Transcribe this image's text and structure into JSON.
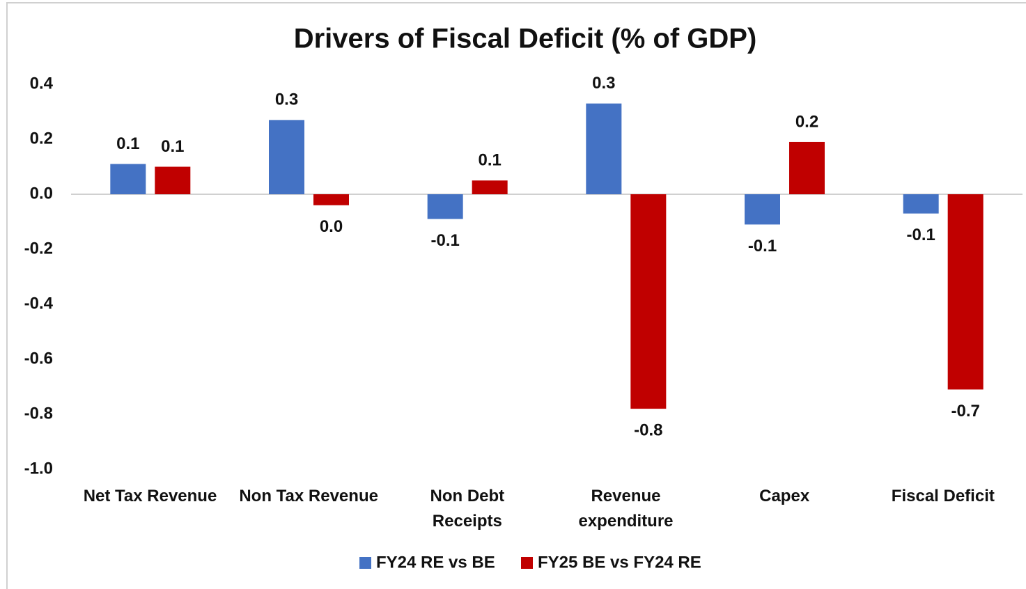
{
  "chart_data": {
    "type": "bar",
    "title": "Drivers of Fiscal Deficit (% of GDP)",
    "categories": [
      "Net Tax Revenue",
      "Non Tax Revenue",
      "Non Debt\nReceipts",
      "Revenue\nexpenditure",
      "Capex",
      "Fiscal Deficit"
    ],
    "series": [
      {
        "name": "FY24 RE vs BE",
        "color": "#4472c4",
        "values": [
          0.11,
          0.27,
          -0.09,
          0.33,
          -0.11,
          -0.07
        ],
        "value_labels": [
          "0.1",
          "0.3",
          "-0.1",
          "0.3",
          "-0.1",
          "-0.1"
        ]
      },
      {
        "name": "FY25 BE vs FY24 RE",
        "color": "#c00000",
        "values": [
          0.1,
          -0.04,
          0.05,
          -0.78,
          0.19,
          -0.71
        ],
        "value_labels": [
          "0.1",
          "0.0",
          "0.1",
          "-0.8",
          "0.2",
          "-0.7"
        ]
      }
    ],
    "ylim": [
      -1,
      0.4
    ],
    "yticks": [
      0.4,
      0.2,
      {
        "value": 0,
        "label": "0.0"
      },
      -0.2,
      -0.4,
      -0.6,
      -0.8,
      {
        "value": -1,
        "label": "-1.0"
      }
    ],
    "grid": false,
    "legend": "bottom"
  }
}
